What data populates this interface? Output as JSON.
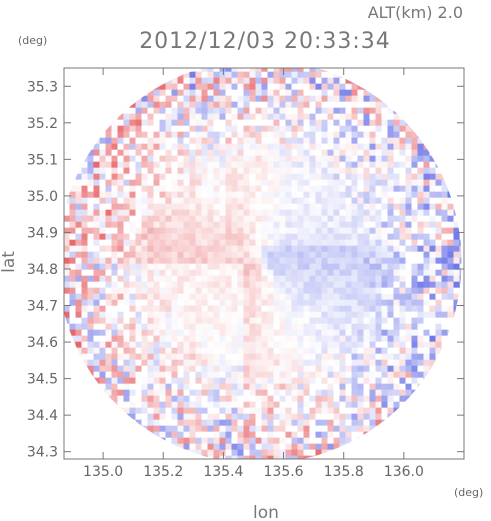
{
  "chart_data": {
    "type": "heatmap",
    "title": "2012/12/03 20:33:34",
    "subtitle": "ALT(km) 2.0",
    "xlabel": "lon",
    "ylabel": "lat",
    "x_unit": "(deg)",
    "y_unit": "(deg)",
    "xlim": [
      134.87,
      136.2
    ],
    "ylim": [
      34.28,
      35.35
    ],
    "x_ticks": [
      "135.0",
      "135.2",
      "135.4",
      "135.6",
      "135.8",
      "136.0"
    ],
    "y_ticks": [
      "35.3",
      "35.2",
      "35.1",
      "35.0",
      "34.9",
      "34.8",
      "34.7",
      "34.6",
      "34.5",
      "34.4",
      "34.3"
    ],
    "x_tick_values": [
      135.0,
      135.2,
      135.4,
      135.6,
      135.8,
      136.0
    ],
    "y_tick_values": [
      35.3,
      35.2,
      35.1,
      35.0,
      34.9,
      34.8,
      34.7,
      34.6,
      34.5,
      34.4,
      34.3
    ],
    "radar_center": [
      135.52,
      34.82
    ],
    "radar_radius_deg": 0.53,
    "colors": {
      "positive": "#e8676b",
      "negative": "#6f78e8",
      "neutral": "#ffffff",
      "frame": "#777777"
    },
    "grid": false,
    "legend": "none"
  }
}
